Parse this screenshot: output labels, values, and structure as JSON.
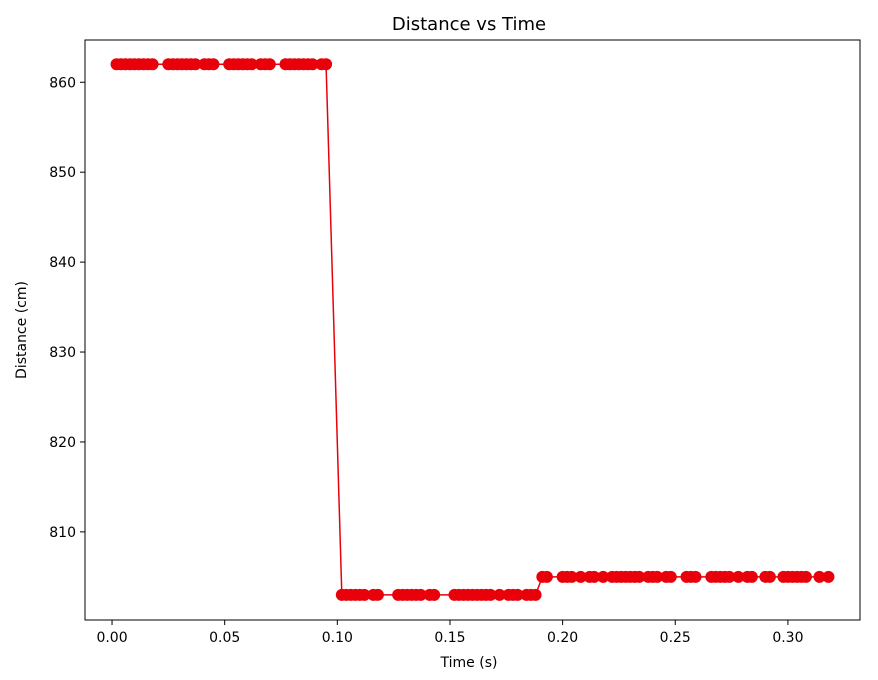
{
  "chart_data": {
    "type": "line",
    "title": "Distance vs Time",
    "xlabel": "Time (s)",
    "ylabel": "Distance (cm)",
    "xlim": [
      -0.012,
      0.332
    ],
    "ylim": [
      800.2,
      864.7
    ],
    "xticks": [
      0.0,
      0.05,
      0.1,
      0.15,
      0.2,
      0.25,
      0.3
    ],
    "xtick_labels": [
      "0.00",
      "0.05",
      "0.10",
      "0.15",
      "0.20",
      "0.25",
      "0.30"
    ],
    "yticks": [
      810,
      820,
      830,
      840,
      850,
      860
    ],
    "ytick_labels": [
      "810",
      "820",
      "830",
      "840",
      "850",
      "860"
    ],
    "grid": false,
    "legend": "none",
    "series": [
      {
        "color": "#e8000b",
        "marker": "circle",
        "x": [
          0.002,
          0.004,
          0.006,
          0.008,
          0.01,
          0.012,
          0.014,
          0.016,
          0.018,
          0.025,
          0.027,
          0.029,
          0.031,
          0.033,
          0.035,
          0.037,
          0.041,
          0.043,
          0.045,
          0.052,
          0.054,
          0.056,
          0.058,
          0.06,
          0.062,
          0.066,
          0.068,
          0.07,
          0.077,
          0.079,
          0.081,
          0.083,
          0.085,
          0.087,
          0.089,
          0.093,
          0.095,
          0.102,
          0.104,
          0.106,
          0.108,
          0.11,
          0.112,
          0.116,
          0.118,
          0.127,
          0.129,
          0.131,
          0.133,
          0.135,
          0.137,
          0.141,
          0.143,
          0.152,
          0.154,
          0.156,
          0.158,
          0.16,
          0.162,
          0.164,
          0.166,
          0.168,
          0.172,
          0.176,
          0.178,
          0.18,
          0.184,
          0.186,
          0.188,
          0.191,
          0.193,
          0.2,
          0.202,
          0.204,
          0.208,
          0.212,
          0.214,
          0.218,
          0.222,
          0.224,
          0.226,
          0.228,
          0.23,
          0.232,
          0.234,
          0.238,
          0.24,
          0.242,
          0.246,
          0.248,
          0.255,
          0.257,
          0.259,
          0.266,
          0.268,
          0.27,
          0.272,
          0.274,
          0.278,
          0.282,
          0.284,
          0.29,
          0.292,
          0.298,
          0.3,
          0.302,
          0.304,
          0.306,
          0.308,
          0.314,
          0.318
        ],
        "y": [
          862,
          862,
          862,
          862,
          862,
          862,
          862,
          862,
          862,
          862,
          862,
          862,
          862,
          862,
          862,
          862,
          862,
          862,
          862,
          862,
          862,
          862,
          862,
          862,
          862,
          862,
          862,
          862,
          862,
          862,
          862,
          862,
          862,
          862,
          862,
          862,
          862,
          803,
          803,
          803,
          803,
          803,
          803,
          803,
          803,
          803,
          803,
          803,
          803,
          803,
          803,
          803,
          803,
          803,
          803,
          803,
          803,
          803,
          803,
          803,
          803,
          803,
          803,
          803,
          803,
          803,
          803,
          803,
          803,
          805,
          805,
          805,
          805,
          805,
          805,
          805,
          805,
          805,
          805,
          805,
          805,
          805,
          805,
          805,
          805,
          805,
          805,
          805,
          805,
          805,
          805,
          805,
          805,
          805,
          805,
          805,
          805,
          805,
          805,
          805,
          805,
          805,
          805,
          805,
          805,
          805,
          805,
          805,
          805,
          805,
          805
        ]
      }
    ]
  }
}
